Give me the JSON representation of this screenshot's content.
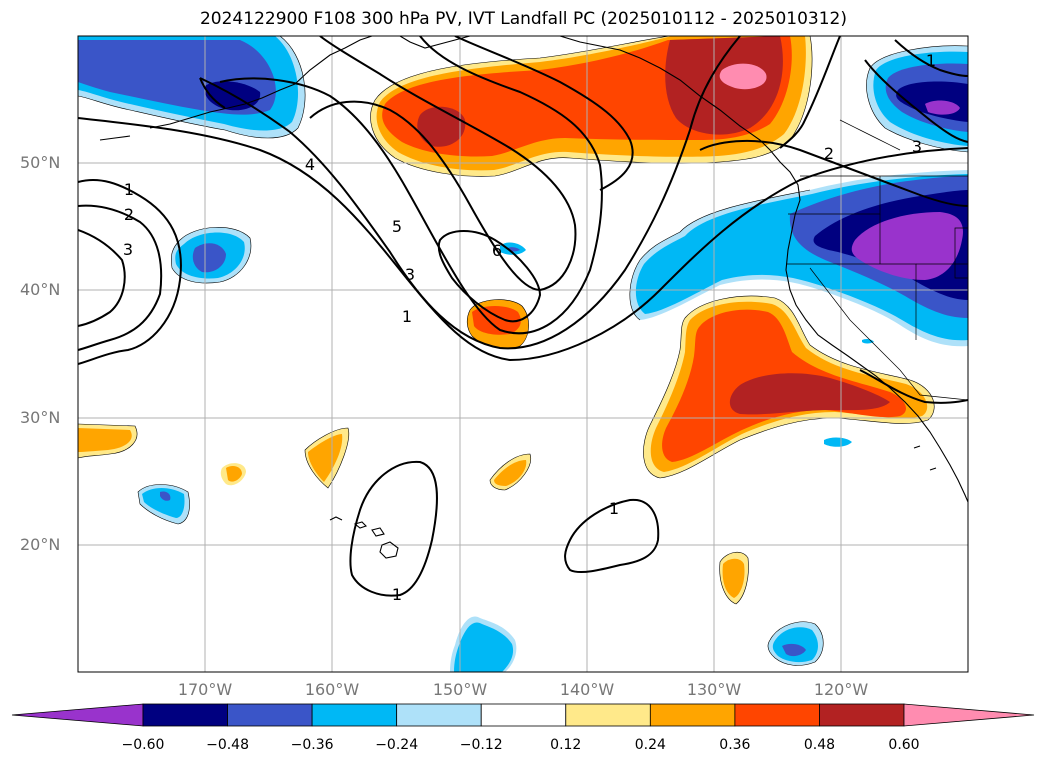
{
  "title": "2024122900 F108 300 hPa PV, IVT Landfall PC (2025010112 - 2025010312)",
  "lat_labels": [
    "50°N",
    "40°N",
    "30°N",
    "20°N"
  ],
  "lon_labels": [
    "170°W",
    "160°W",
    "150°W",
    "140°W",
    "130°W",
    "120°W"
  ],
  "contour_labels": [
    "1",
    "2",
    "3",
    "4",
    "5",
    "3",
    "6",
    "1",
    "2",
    "3",
    "1",
    "1",
    "1"
  ],
  "colorbar": {
    "tick_labels": [
      "−0.60",
      "−0.48",
      "−0.36",
      "−0.24",
      "−0.12",
      "0.12",
      "0.24",
      "0.36",
      "0.48",
      "0.60"
    ],
    "colors": [
      "#9933cc",
      "#000080",
      "#3a55c8",
      "#00b8f5",
      "#aee1f9",
      "#ffffff",
      "#ffe98a",
      "#ffa500",
      "#ff4500",
      "#b22222",
      "#ff8cb0",
      "#ff8cb0"
    ]
  }
}
